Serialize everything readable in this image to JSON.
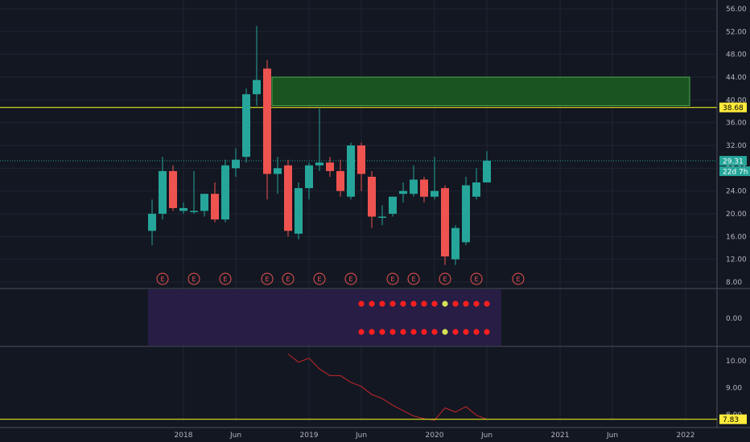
{
  "chart_data": {
    "type": "candlestick",
    "price_axis": {
      "ticks": [
        "56.00",
        "52.00",
        "48.00",
        "44.00",
        "40.00",
        "36.00",
        "32.00",
        "28.00",
        "24.00",
        "20.00",
        "16.00",
        "12.00",
        "8.00"
      ],
      "ylim": [
        7,
        57
      ]
    },
    "x_axis": {
      "ticks": [
        "2018",
        "Jun",
        "2019",
        "Jun",
        "2020",
        "Jun",
        "2021",
        "Jun",
        "2022"
      ]
    },
    "candles": [
      {
        "date": "2017-10",
        "open": 17.0,
        "high": 22.5,
        "low": 14.5,
        "close": 20.0
      },
      {
        "date": "2017-11",
        "open": 20.0,
        "high": 30.0,
        "low": 19.0,
        "close": 27.5
      },
      {
        "date": "2017-12",
        "open": 27.5,
        "high": 28.5,
        "low": 20.5,
        "close": 21.0
      },
      {
        "date": "2018-01",
        "open": 20.5,
        "high": 22.0,
        "low": 20.0,
        "close": 21.0
      },
      {
        "date": "2018-02",
        "open": 20.5,
        "high": 27.5,
        "low": 20.0,
        "close": 20.5
      },
      {
        "date": "2018-03",
        "open": 20.5,
        "high": 23.5,
        "low": 19.5,
        "close": 23.5
      },
      {
        "date": "2018-04",
        "open": 23.5,
        "high": 25.5,
        "low": 18.5,
        "close": 19.0
      },
      {
        "date": "2018-05",
        "open": 19.0,
        "high": 29.5,
        "low": 18.5,
        "close": 28.5
      },
      {
        "date": "2018-06",
        "open": 28.0,
        "high": 31.5,
        "low": 26.5,
        "close": 29.5
      },
      {
        "date": "2018-07",
        "open": 30.0,
        "high": 42.0,
        "low": 29.0,
        "close": 41.0
      },
      {
        "date": "2018-08",
        "open": 41.0,
        "high": 53.0,
        "low": 39.0,
        "close": 43.5
      },
      {
        "date": "2018-09",
        "open": 45.5,
        "high": 47.0,
        "low": 22.5,
        "close": 27.0
      },
      {
        "date": "2018-10",
        "open": 27.0,
        "high": 30.0,
        "low": 23.5,
        "close": 28.0
      },
      {
        "date": "2018-11",
        "open": 28.5,
        "high": 29.5,
        "low": 16.0,
        "close": 17.0
      },
      {
        "date": "2018-12",
        "open": 16.5,
        "high": 25.5,
        "low": 15.5,
        "close": 24.5
      },
      {
        "date": "2019-01",
        "open": 24.5,
        "high": 29.0,
        "low": 22.5,
        "close": 28.5
      },
      {
        "date": "2019-02",
        "open": 28.5,
        "high": 38.5,
        "low": 27.5,
        "close": 29.0
      },
      {
        "date": "2019-03",
        "open": 29.0,
        "high": 30.0,
        "low": 26.5,
        "close": 27.5
      },
      {
        "date": "2019-04",
        "open": 27.5,
        "high": 29.5,
        "low": 23.0,
        "close": 24.0
      },
      {
        "date": "2019-05",
        "open": 23.0,
        "high": 32.5,
        "low": 22.5,
        "close": 32.0
      },
      {
        "date": "2019-06",
        "open": 32.0,
        "high": 32.5,
        "low": 24.0,
        "close": 27.0
      },
      {
        "date": "2019-07",
        "open": 26.5,
        "high": 27.5,
        "low": 17.5,
        "close": 19.5
      },
      {
        "date": "2019-08",
        "open": 19.5,
        "high": 21.5,
        "low": 18.0,
        "close": 19.5
      },
      {
        "date": "2019-09",
        "open": 20.0,
        "high": 23.0,
        "low": 19.5,
        "close": 23.0
      },
      {
        "date": "2019-10",
        "open": 23.5,
        "high": 25.5,
        "low": 22.0,
        "close": 24.0
      },
      {
        "date": "2019-11",
        "open": 23.5,
        "high": 28.5,
        "low": 23.0,
        "close": 26.0
      },
      {
        "date": "2019-12",
        "open": 26.0,
        "high": 26.5,
        "low": 22.0,
        "close": 23.0
      },
      {
        "date": "2020-01",
        "open": 23.0,
        "high": 30.0,
        "low": 22.5,
        "close": 24.0
      },
      {
        "date": "2020-02",
        "open": 24.5,
        "high": 25.0,
        "low": 11.0,
        "close": 12.5
      },
      {
        "date": "2020-03",
        "open": 12.0,
        "high": 18.0,
        "low": 11.0,
        "close": 17.5
      },
      {
        "date": "2020-04",
        "open": 15.0,
        "high": 26.5,
        "low": 14.5,
        "close": 25.0
      },
      {
        "date": "2020-05",
        "open": 23.0,
        "high": 28.0,
        "low": 22.5,
        "close": 25.5
      },
      {
        "date": "2020-06",
        "open": 25.5,
        "high": 31.0,
        "low": 25.5,
        "close": 29.31
      }
    ],
    "zone": {
      "from_date": "2018-09",
      "to_date": "2022-01",
      "top": 44.0,
      "bottom": 39.0
    },
    "horizontal_line": {
      "value": 38.68,
      "label": "38.68"
    },
    "last_price": {
      "value": 29.31,
      "label": "29.31",
      "countdown": "22d 7h"
    },
    "earnings_markers": {
      "label": "E",
      "dates": [
        "2017-11",
        "2018-02",
        "2018-05",
        "2018-09",
        "2018-11",
        "2019-02",
        "2019-05",
        "2019-09",
        "2019-11",
        "2020-02",
        "2020-05",
        "2020-09"
      ]
    },
    "indicator1": {
      "ticks": [
        "0.00"
      ],
      "shade_from": "2017-10",
      "shade_to": "2020-07",
      "dot_start": "2019-06",
      "rows": [
        [
          "red",
          "red",
          "red",
          "red",
          "red",
          "red",
          "red",
          "red",
          "yellow",
          "red",
          "red",
          "red",
          "red"
        ],
        [
          "red",
          "red",
          "red",
          "red",
          "red",
          "red",
          "red",
          "red",
          "yellow",
          "red",
          "red",
          "red",
          "red"
        ]
      ]
    },
    "indicator2": {
      "ticks": [
        "10.00",
        "9.00",
        "8.00"
      ],
      "ylim": [
        7.7,
        10.6
      ],
      "horizontal_line": {
        "value": 7.83,
        "label": "7.83"
      },
      "series": [
        {
          "date": "2018-11",
          "value": 10.25
        },
        {
          "date": "2018-12",
          "value": 9.95
        },
        {
          "date": "2019-01",
          "value": 10.1
        },
        {
          "date": "2019-02",
          "value": 9.7
        },
        {
          "date": "2019-03",
          "value": 9.45
        },
        {
          "date": "2019-04",
          "value": 9.45
        },
        {
          "date": "2019-05",
          "value": 9.2
        },
        {
          "date": "2019-06",
          "value": 9.05
        },
        {
          "date": "2019-07",
          "value": 8.75
        },
        {
          "date": "2019-08",
          "value": 8.6
        },
        {
          "date": "2019-09",
          "value": 8.35
        },
        {
          "date": "2019-10",
          "value": 8.15
        },
        {
          "date": "2019-11",
          "value": 7.95
        },
        {
          "date": "2019-12",
          "value": 7.85
        },
        {
          "date": "2020-01",
          "value": 7.8
        },
        {
          "date": "2020-02",
          "value": 8.25
        },
        {
          "date": "2020-03",
          "value": 8.1
        },
        {
          "date": "2020-04",
          "value": 8.3
        },
        {
          "date": "2020-05",
          "value": 7.98
        },
        {
          "date": "2020-06",
          "value": 7.83
        }
      ]
    }
  },
  "colors": {
    "background": "#131722",
    "grid": "#1f2433",
    "up": "#26a69a",
    "down": "#ef5350",
    "zone_fill": "#1b5e20",
    "zone_border": "#4caf50",
    "hline": "#e3e81c",
    "label_bg": "#ffeb3b",
    "last_price": "#26a69a",
    "pane_shade": "#271d45",
    "divider": "#4a4f5c",
    "indicator_line": "#c62828",
    "dot_red": "#ff1f1f",
    "dot_yellow": "#d4e157"
  }
}
